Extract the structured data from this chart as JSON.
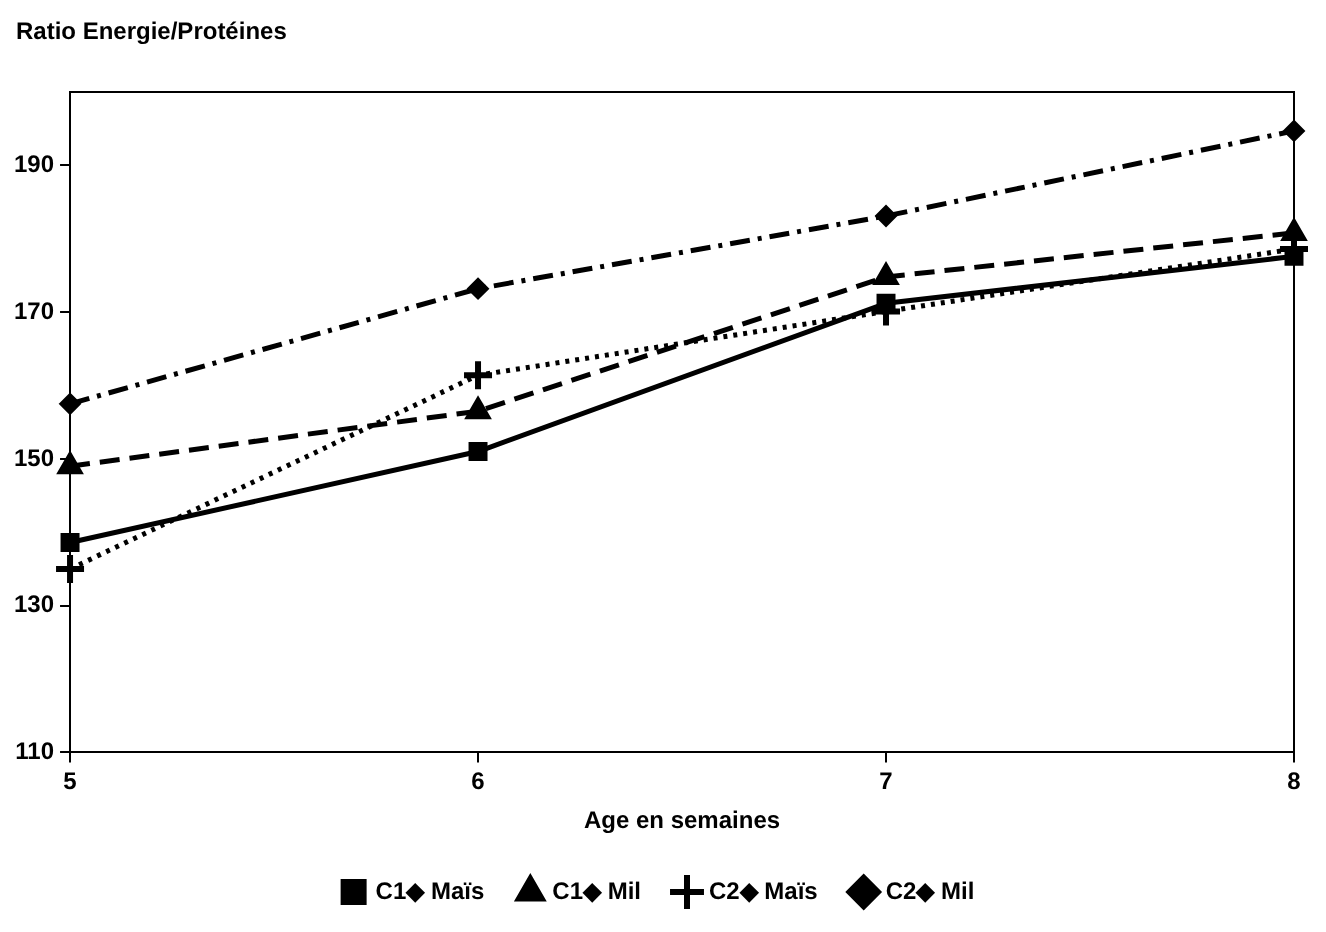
{
  "chart_data": {
    "type": "line",
    "ylabel": "Ratio Energie/Protéines",
    "xlabel": "Age en semaines",
    "x": [
      5,
      6,
      7,
      8
    ],
    "xlim": [
      5,
      8
    ],
    "xticks": [
      5,
      6,
      7,
      8
    ],
    "ylim": [
      110,
      200
    ],
    "yticks": [
      110,
      130,
      150,
      170,
      190
    ],
    "grid": false,
    "legend": "bottom",
    "series": [
      {
        "name": "C1◆ Maïs",
        "color": "#000000",
        "marker": "square",
        "line_style": "solid",
        "values": [
          138.6,
          151,
          171.2,
          177.6
        ]
      },
      {
        "name": "C1◆ Mil",
        "color": "#000000",
        "marker": "triangle",
        "line_style": "dashed",
        "values": [
          149,
          156.5,
          174.8,
          180.8
        ]
      },
      {
        "name": "C2◆ Maïs",
        "color": "#000000",
        "marker": "cross",
        "line_style": "dotted",
        "values": [
          135,
          161.4,
          170.1,
          178.6
        ]
      },
      {
        "name": "C2◆ Mil",
        "color": "#000000",
        "marker": "diamond",
        "line_style": "dashdot",
        "values": [
          157.5,
          173.2,
          183.1,
          194.7
        ]
      }
    ]
  }
}
